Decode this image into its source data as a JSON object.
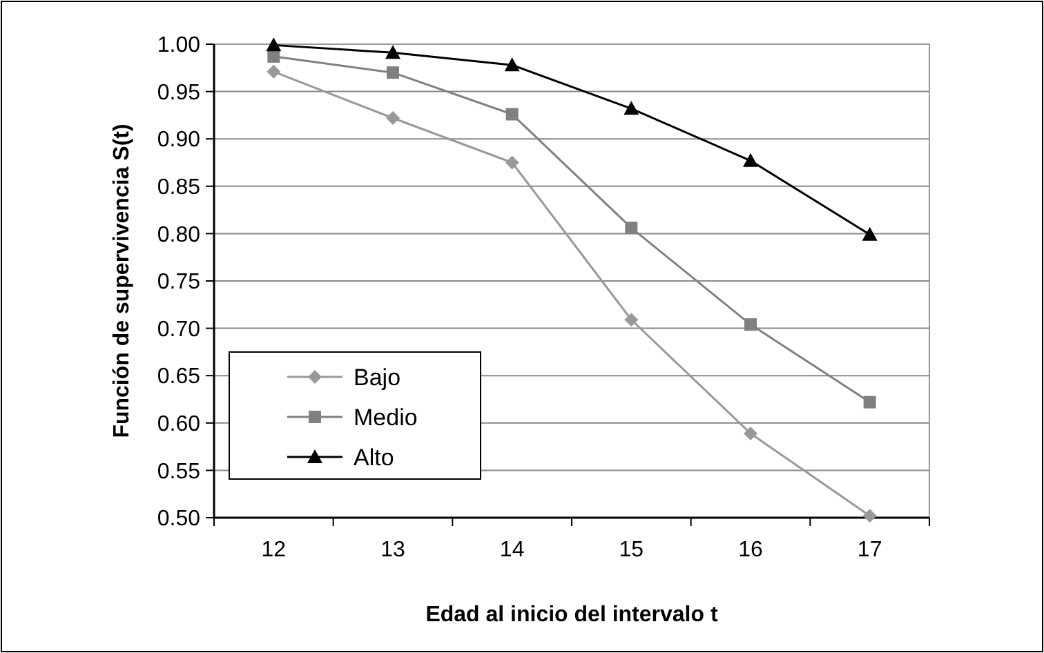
{
  "chart_data": {
    "type": "line",
    "xlabel": "Edad al inicio del intervalo t",
    "ylabel": "Función de supervivencia  S(t)",
    "categories": [
      "12",
      "13",
      "14",
      "15",
      "16",
      "17"
    ],
    "series": [
      {
        "name": "Bajo",
        "color": "#999999",
        "marker": "diamond",
        "values": [
          0.971,
          0.922,
          0.875,
          0.709,
          0.589,
          0.502
        ]
      },
      {
        "name": "Medio",
        "color": "#808080",
        "marker": "square",
        "values": [
          0.987,
          0.97,
          0.926,
          0.806,
          0.704,
          0.622
        ]
      },
      {
        "name": "Alto",
        "color": "#000000",
        "marker": "triangle",
        "values": [
          0.999,
          0.991,
          0.978,
          0.932,
          0.877,
          0.799
        ]
      }
    ],
    "ylim": [
      0.5,
      1.0
    ],
    "yticks": [
      {
        "value": 0.5,
        "label": "0.50"
      },
      {
        "value": 0.55,
        "label": "0.55"
      },
      {
        "value": 0.6,
        "label": "0.60"
      },
      {
        "value": 0.65,
        "label": "0.65"
      },
      {
        "value": 0.7,
        "label": "0.70"
      },
      {
        "value": 0.75,
        "label": "0.75"
      },
      {
        "value": 0.8,
        "label": "0.80"
      },
      {
        "value": 0.85,
        "label": "0.85"
      },
      {
        "value": 0.9,
        "label": "0.90"
      },
      {
        "value": 0.95,
        "label": "0.95"
      },
      {
        "value": 1.0,
        "label": "1.00"
      }
    ],
    "grid": "y",
    "legend": "bottom left"
  }
}
